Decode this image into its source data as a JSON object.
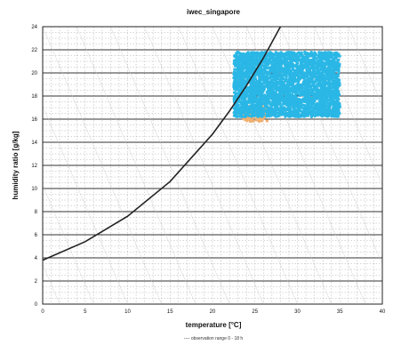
{
  "chart_data": {
    "type": "scatter",
    "title": "iwec_singapore",
    "xlabel": "temperature [°C]",
    "ylabel": "humidity ratio [g/kg]",
    "footnote": "---- observation range 0 - 18 h",
    "xlim": [
      0,
      40
    ],
    "ylim": [
      0,
      24
    ],
    "x_ticks": [
      0,
      5,
      10,
      15,
      20,
      25,
      30,
      35,
      40
    ],
    "y_ticks": [
      0,
      2,
      4,
      6,
      8,
      10,
      12,
      14,
      16,
      18,
      20,
      22,
      24
    ],
    "grid": true,
    "saturation_curve": {
      "name": "",
      "color": "#222222",
      "x": [
        0,
        5,
        10,
        15,
        20,
        22,
        24,
        26,
        28
      ],
      "y": [
        3.8,
        5.4,
        7.6,
        10.6,
        14.7,
        16.7,
        18.9,
        21.3,
        24.0
      ]
    },
    "series": [
      {
        "color": "#f0b070",
        "cloud": {
          "x_range": [
            23.5,
            26.5
          ],
          "y_range": [
            15.8,
            17.2
          ],
          "n": 180
        }
      },
      {
        "color": "#2ab7e6",
        "cloud": {
          "x_range": [
            22.5,
            35
          ],
          "y_range": [
            16.2,
            21.8
          ],
          "n": 3500
        }
      }
    ]
  }
}
